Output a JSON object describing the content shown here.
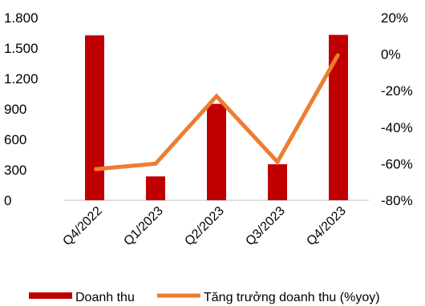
{
  "chart_data": {
    "type": "bar+line",
    "title": "",
    "categories": [
      "Q4/2022",
      "Q1/2023",
      "Q2/2023",
      "Q3/2023",
      "Q4/2023"
    ],
    "series": [
      {
        "name": "Doanh thu",
        "type": "bar",
        "axis": "left",
        "color": "#c00000",
        "values": [
          1625,
          235,
          950,
          355,
          1630
        ]
      },
      {
        "name": "Tăng trưởng doanh thu (%yoy)",
        "type": "line",
        "axis": "right",
        "color": "#ed7d31",
        "values": [
          -63,
          -60,
          -23,
          -59,
          0
        ]
      }
    ],
    "y_left": {
      "min": 0,
      "max": 1800,
      "ticks": [
        0,
        300,
        600,
        900,
        1200,
        1500,
        1800
      ],
      "tick_labels": [
        "0",
        "300",
        "600",
        "900",
        "1.200",
        "1.500",
        "1.800"
      ]
    },
    "y_right": {
      "min": -80,
      "max": 20,
      "ticks": [
        -80,
        -60,
        -40,
        -20,
        0,
        20
      ],
      "tick_labels": [
        "-80%",
        "-60%",
        "-40%",
        "-20%",
        "0%",
        "20%"
      ]
    },
    "grid": false,
    "legend": "bottom"
  }
}
